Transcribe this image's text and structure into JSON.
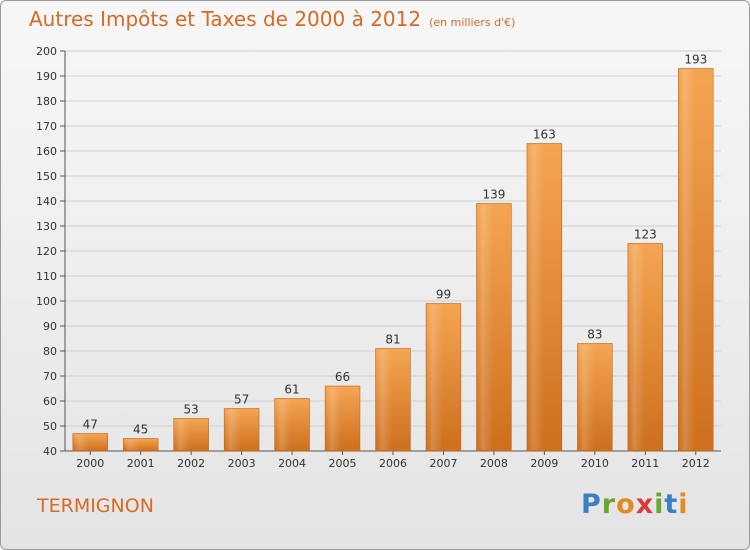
{
  "header": {
    "title": "Autres Impôts et Taxes de 2000 à 2012",
    "subtitle": "(en milliers d'€)"
  },
  "footer": {
    "place": "TERMIGNON",
    "logo": "Proxiti"
  },
  "colors": {
    "bar_top": "#f5a552",
    "bar_bottom": "#cd6f1d",
    "title": "#d76a25",
    "grid": "#cfcfcf"
  },
  "chart_data": {
    "type": "bar",
    "title": "Autres Impôts et Taxes de 2000 à 2012",
    "subtitle": "(en milliers d'€)",
    "categories": [
      "2000",
      "2001",
      "2002",
      "2003",
      "2004",
      "2005",
      "2006",
      "2007",
      "2008",
      "2009",
      "2010",
      "2011",
      "2012"
    ],
    "values": [
      47,
      45,
      53,
      57,
      61,
      66,
      81,
      99,
      139,
      163,
      83,
      123,
      193
    ],
    "ylim": [
      40,
      200
    ],
    "yticks": [
      40,
      50,
      60,
      70,
      80,
      90,
      100,
      110,
      120,
      130,
      140,
      150,
      160,
      170,
      180,
      190,
      200
    ],
    "grid": true,
    "data_labels": true
  }
}
